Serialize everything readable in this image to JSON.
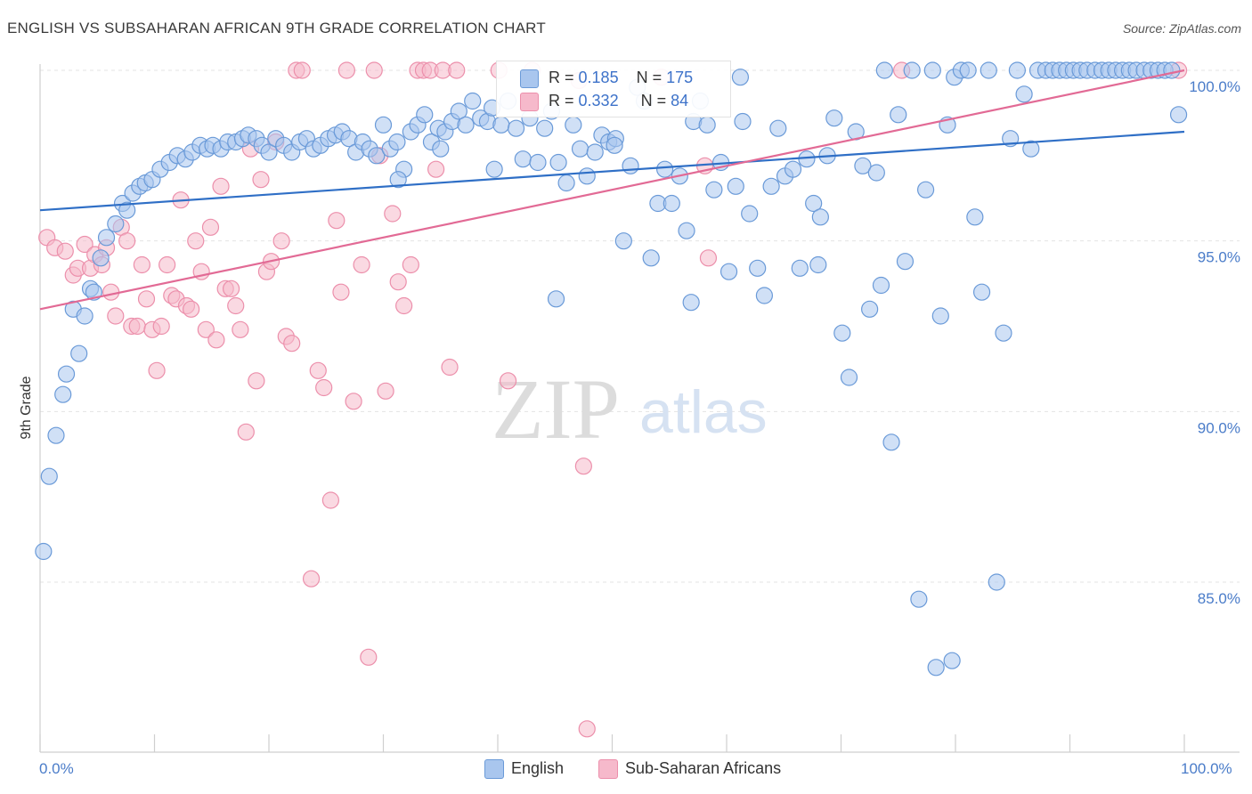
{
  "title": "ENGLISH VS SUBSAHARAN AFRICAN 9TH GRADE CORRELATION CHART",
  "source": "Source: ZipAtlas.com",
  "watermark": {
    "zip": "ZIP",
    "atlas": "atlas"
  },
  "legend_box": {
    "rows": [
      {
        "r_label": "R =",
        "r_value": "0.185",
        "n_label": "N =",
        "n_value": "175"
      },
      {
        "r_label": "R =",
        "r_value": "0.332",
        "n_label": "N =",
        "n_value": "84"
      }
    ]
  },
  "bottom_legend": {
    "english": "English",
    "subsaharan": "Sub-Saharan Africans"
  },
  "colors": {
    "english_fill": "#a9c6ee",
    "english_stroke": "#6a9ad8",
    "english_line": "#2f6fc6",
    "african_fill": "#f6b9cb",
    "african_stroke": "#ec8fab",
    "african_line": "#e26a95",
    "tick": "#4a7cc9",
    "grid": "#e3e3e3"
  },
  "chart_data": {
    "type": "scatter",
    "title": "ENGLISH VS SUBSAHARAN AFRICAN 9TH GRADE CORRELATION CHART",
    "xlabel": "",
    "ylabel": "9th Grade",
    "xlim": [
      0,
      100
    ],
    "ylim": [
      80,
      100.5
    ],
    "x_tick_labels": [
      "0.0%",
      "100.0%"
    ],
    "y_ticks": [
      85,
      90,
      95,
      100
    ],
    "y_tick_labels": [
      "85.0%",
      "90.0%",
      "95.0%",
      "100.0%"
    ],
    "grid": true,
    "legend_position": "top-center",
    "series": [
      {
        "name": "English",
        "r": 0.185,
        "n": 175,
        "trend": {
          "x": [
            0,
            100
          ],
          "y": [
            95.9,
            98.2
          ]
        },
        "points": [
          [
            0.3,
            85.9
          ],
          [
            0.8,
            88.1
          ],
          [
            1.4,
            89.3
          ],
          [
            2.0,
            90.5
          ],
          [
            2.3,
            91.1
          ],
          [
            2.9,
            93.0
          ],
          [
            3.4,
            91.7
          ],
          [
            3.9,
            92.8
          ],
          [
            4.4,
            93.6
          ],
          [
            4.7,
            93.5
          ],
          [
            5.3,
            94.5
          ],
          [
            5.8,
            95.1
          ],
          [
            6.6,
            95.5
          ],
          [
            7.2,
            96.1
          ],
          [
            7.6,
            95.9
          ],
          [
            8.1,
            96.4
          ],
          [
            8.7,
            96.6
          ],
          [
            9.2,
            96.7
          ],
          [
            9.8,
            96.8
          ],
          [
            10.5,
            97.1
          ],
          [
            11.3,
            97.3
          ],
          [
            12.0,
            97.5
          ],
          [
            12.7,
            97.4
          ],
          [
            13.3,
            97.6
          ],
          [
            14.0,
            97.8
          ],
          [
            14.6,
            97.7
          ],
          [
            15.1,
            97.8
          ],
          [
            15.8,
            97.7
          ],
          [
            16.4,
            97.9
          ],
          [
            17.1,
            97.9
          ],
          [
            17.7,
            98.0
          ],
          [
            18.2,
            98.1
          ],
          [
            18.9,
            98.0
          ],
          [
            19.4,
            97.8
          ],
          [
            20.0,
            97.6
          ],
          [
            20.6,
            98.0
          ],
          [
            21.3,
            97.8
          ],
          [
            22.0,
            97.6
          ],
          [
            22.7,
            97.9
          ],
          [
            23.3,
            98.0
          ],
          [
            23.9,
            97.7
          ],
          [
            24.5,
            97.8
          ],
          [
            25.2,
            98.0
          ],
          [
            25.8,
            98.1
          ],
          [
            26.4,
            98.2
          ],
          [
            27.0,
            98.0
          ],
          [
            27.6,
            97.6
          ],
          [
            28.2,
            97.9
          ],
          [
            28.8,
            97.7
          ],
          [
            29.4,
            97.5
          ],
          [
            30.0,
            98.4
          ],
          [
            30.6,
            97.7
          ],
          [
            31.2,
            97.9
          ],
          [
            31.8,
            97.1
          ],
          [
            32.4,
            98.2
          ],
          [
            33.0,
            98.4
          ],
          [
            33.6,
            98.7
          ],
          [
            34.2,
            97.9
          ],
          [
            34.8,
            98.3
          ],
          [
            35.4,
            98.2
          ],
          [
            36.0,
            98.5
          ],
          [
            36.6,
            98.8
          ],
          [
            37.2,
            98.4
          ],
          [
            37.8,
            99.1
          ],
          [
            38.5,
            98.6
          ],
          [
            39.1,
            98.5
          ],
          [
            39.7,
            97.1
          ],
          [
            40.3,
            98.4
          ],
          [
            40.9,
            99.1
          ],
          [
            41.6,
            98.3
          ],
          [
            42.2,
            97.4
          ],
          [
            42.8,
            98.6
          ],
          [
            43.5,
            97.3
          ],
          [
            44.1,
            98.3
          ],
          [
            44.7,
            98.8
          ],
          [
            45.3,
            97.3
          ],
          [
            46.0,
            96.7
          ],
          [
            46.6,
            98.4
          ],
          [
            47.2,
            97.7
          ],
          [
            47.8,
            96.9
          ],
          [
            48.5,
            97.6
          ],
          [
            49.1,
            98.1
          ],
          [
            49.7,
            97.9
          ],
          [
            50.3,
            98.0
          ],
          [
            51.0,
            95.0
          ],
          [
            51.6,
            97.2
          ],
          [
            52.2,
            99.5
          ],
          [
            52.8,
            99.1
          ],
          [
            53.4,
            94.5
          ],
          [
            54.0,
            96.1
          ],
          [
            54.6,
            97.1
          ],
          [
            55.2,
            96.1
          ],
          [
            55.9,
            96.9
          ],
          [
            56.5,
            95.3
          ],
          [
            57.1,
            98.5
          ],
          [
            57.7,
            99.1
          ],
          [
            58.3,
            98.4
          ],
          [
            58.9,
            96.5
          ],
          [
            59.5,
            97.3
          ],
          [
            60.2,
            94.1
          ],
          [
            60.8,
            96.6
          ],
          [
            61.4,
            98.5
          ],
          [
            62.0,
            95.8
          ],
          [
            62.7,
            94.2
          ],
          [
            63.3,
            93.4
          ],
          [
            63.9,
            96.6
          ],
          [
            64.5,
            98.3
          ],
          [
            65.1,
            96.9
          ],
          [
            65.8,
            97.1
          ],
          [
            66.4,
            94.2
          ],
          [
            67.0,
            97.4
          ],
          [
            67.6,
            96.1
          ],
          [
            68.2,
            95.7
          ],
          [
            68.8,
            97.5
          ],
          [
            69.4,
            98.6
          ],
          [
            70.1,
            92.3
          ],
          [
            70.7,
            91.0
          ],
          [
            71.3,
            98.2
          ],
          [
            71.9,
            97.2
          ],
          [
            72.5,
            93.0
          ],
          [
            73.1,
            97.0
          ],
          [
            73.8,
            100.0
          ],
          [
            74.4,
            89.1
          ],
          [
            75.0,
            98.7
          ],
          [
            75.6,
            94.4
          ],
          [
            76.2,
            100.0
          ],
          [
            76.8,
            84.5
          ],
          [
            77.4,
            96.5
          ],
          [
            78.0,
            100.0
          ],
          [
            78.7,
            92.8
          ],
          [
            79.3,
            98.4
          ],
          [
            79.9,
            99.8
          ],
          [
            80.5,
            100.0
          ],
          [
            81.1,
            100.0
          ],
          [
            81.7,
            95.7
          ],
          [
            82.3,
            93.5
          ],
          [
            82.9,
            100.0
          ],
          [
            83.6,
            85.0
          ],
          [
            84.2,
            92.3
          ],
          [
            84.8,
            98.0
          ],
          [
            85.4,
            100.0
          ],
          [
            86.0,
            99.3
          ],
          [
            86.6,
            97.7
          ],
          [
            87.2,
            100.0
          ],
          [
            87.9,
            100.0
          ],
          [
            88.5,
            100.0
          ],
          [
            89.1,
            100.0
          ],
          [
            89.7,
            100.0
          ],
          [
            90.3,
            100.0
          ],
          [
            90.9,
            100.0
          ],
          [
            91.5,
            100.0
          ],
          [
            92.2,
            100.0
          ],
          [
            92.8,
            100.0
          ],
          [
            93.4,
            100.0
          ],
          [
            94.0,
            100.0
          ],
          [
            94.6,
            100.0
          ],
          [
            95.2,
            100.0
          ],
          [
            95.8,
            100.0
          ],
          [
            96.5,
            100.0
          ],
          [
            97.1,
            100.0
          ],
          [
            97.7,
            100.0
          ],
          [
            98.3,
            100.0
          ],
          [
            98.9,
            100.0
          ],
          [
            99.5,
            98.7
          ],
          [
            78.3,
            82.5
          ],
          [
            79.7,
            82.7
          ],
          [
            73.5,
            93.7
          ],
          [
            68.0,
            94.3
          ],
          [
            61.2,
            99.8
          ],
          [
            56.9,
            93.2
          ],
          [
            50.2,
            97.8
          ],
          [
            45.1,
            93.3
          ],
          [
            39.5,
            98.9
          ],
          [
            35.0,
            97.7
          ],
          [
            31.3,
            96.8
          ]
        ]
      },
      {
        "name": "Sub-Saharan Africans",
        "r": 0.332,
        "n": 84,
        "trend": {
          "x": [
            0,
            100
          ],
          "y": [
            93.0,
            100.0
          ]
        },
        "points": [
          [
            0.6,
            95.1
          ],
          [
            1.3,
            94.8
          ],
          [
            2.2,
            94.7
          ],
          [
            2.9,
            94.0
          ],
          [
            3.3,
            94.2
          ],
          [
            3.9,
            94.9
          ],
          [
            4.4,
            94.2
          ],
          [
            4.8,
            94.6
          ],
          [
            5.4,
            94.3
          ],
          [
            5.8,
            94.8
          ],
          [
            6.2,
            93.5
          ],
          [
            6.6,
            92.8
          ],
          [
            7.1,
            95.4
          ],
          [
            7.6,
            95.0
          ],
          [
            8.0,
            92.5
          ],
          [
            8.5,
            92.5
          ],
          [
            8.9,
            94.3
          ],
          [
            9.3,
            93.3
          ],
          [
            9.8,
            92.4
          ],
          [
            10.2,
            91.2
          ],
          [
            10.6,
            92.5
          ],
          [
            11.1,
            94.3
          ],
          [
            11.5,
            93.4
          ],
          [
            11.9,
            93.3
          ],
          [
            12.3,
            96.2
          ],
          [
            12.8,
            93.1
          ],
          [
            13.2,
            93.0
          ],
          [
            13.6,
            95.0
          ],
          [
            14.1,
            94.1
          ],
          [
            14.5,
            92.4
          ],
          [
            14.9,
            95.4
          ],
          [
            15.4,
            92.1
          ],
          [
            15.8,
            96.6
          ],
          [
            16.2,
            93.6
          ],
          [
            16.7,
            93.6
          ],
          [
            17.1,
            93.1
          ],
          [
            17.5,
            92.4
          ],
          [
            18.0,
            89.4
          ],
          [
            18.4,
            97.7
          ],
          [
            18.9,
            90.9
          ],
          [
            19.3,
            96.8
          ],
          [
            19.8,
            94.1
          ],
          [
            20.2,
            94.4
          ],
          [
            20.6,
            97.9
          ],
          [
            21.1,
            95.0
          ],
          [
            21.5,
            92.2
          ],
          [
            22.0,
            92.0
          ],
          [
            22.4,
            100.0
          ],
          [
            22.9,
            100.0
          ],
          [
            23.7,
            85.1
          ],
          [
            24.3,
            91.2
          ],
          [
            24.8,
            90.7
          ],
          [
            25.4,
            87.4
          ],
          [
            25.9,
            95.6
          ],
          [
            26.3,
            93.5
          ],
          [
            26.8,
            100.0
          ],
          [
            27.4,
            90.3
          ],
          [
            28.1,
            94.3
          ],
          [
            28.7,
            82.8
          ],
          [
            29.2,
            100.0
          ],
          [
            29.7,
            97.5
          ],
          [
            30.2,
            90.6
          ],
          [
            30.8,
            95.8
          ],
          [
            31.3,
            93.8
          ],
          [
            31.8,
            93.1
          ],
          [
            32.4,
            94.3
          ],
          [
            33.0,
            100.0
          ],
          [
            33.5,
            100.0
          ],
          [
            34.1,
            100.0
          ],
          [
            34.6,
            97.1
          ],
          [
            35.2,
            100.0
          ],
          [
            35.8,
            91.3
          ],
          [
            36.4,
            100.0
          ],
          [
            40.1,
            100.0
          ],
          [
            40.9,
            90.9
          ],
          [
            43.0,
            100.0
          ],
          [
            47.1,
            99.7
          ],
          [
            47.5,
            88.4
          ],
          [
            47.8,
            80.7
          ],
          [
            54.3,
            99.8
          ],
          [
            58.1,
            97.2
          ],
          [
            58.4,
            94.5
          ],
          [
            75.3,
            100.0
          ],
          [
            99.5,
            100.0
          ]
        ]
      }
    ]
  }
}
